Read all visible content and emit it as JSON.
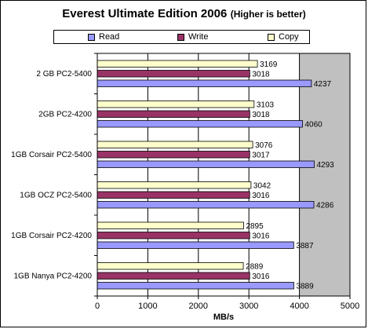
{
  "chart_data": {
    "type": "bar",
    "orientation": "horizontal",
    "title": "Everest Ultimate Edition 2006",
    "subtitle": "(Higher is better)",
    "xlabel": "MB/s",
    "ylabel": "",
    "xlim": [
      0,
      5000
    ],
    "xticks": [
      0,
      1000,
      2000,
      3000,
      4000,
      5000
    ],
    "grid": true,
    "legend_position": "top",
    "categories": [
      "2 GB PC2-5400",
      "2GB PC2-4200",
      "1GB Corsair PC2-5400",
      "1GB OCZ PC2-5400",
      "1GB Corsair PC2-4200",
      "1GB Nanya PC2-4200"
    ],
    "series": [
      {
        "name": "Read",
        "color": "#9999ff",
        "values": [
          4237,
          4060,
          4293,
          4286,
          3887,
          3889
        ]
      },
      {
        "name": "Write",
        "color": "#993366",
        "values": [
          3018,
          3018,
          3017,
          3016,
          3016,
          3016
        ]
      },
      {
        "name": "Copy",
        "color": "#ffffcc",
        "values": [
          3169,
          3103,
          3076,
          3042,
          2895,
          2889
        ]
      }
    ],
    "plot_background": "#c0c0c0"
  }
}
